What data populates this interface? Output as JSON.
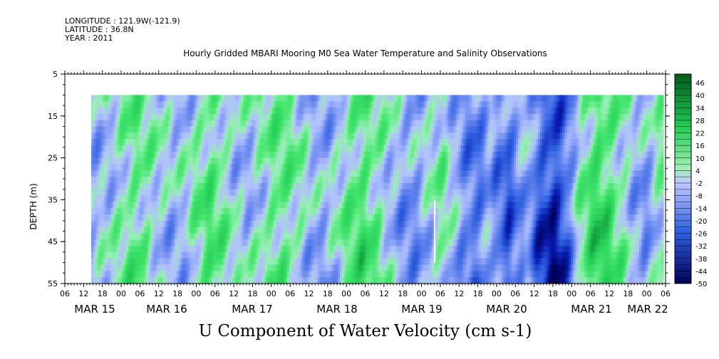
{
  "header": {
    "longitude": "LONGITUDE : 121.9W(-121.9)",
    "latitude": "LATITUDE : 36.8N",
    "year": "YEAR : 2011"
  },
  "chart_data": {
    "type": "heatmap",
    "title": "Hourly Gridded MBARI Mooring M0 Sea Water Temperature and Salinity Observations",
    "xlabel": "U Component of Water Velocity (cm s-1)",
    "ylabel": "DEPTH (m)",
    "ylim": [
      55,
      5
    ],
    "y_ticks": [
      5,
      15,
      25,
      35,
      45,
      55
    ],
    "x_hour_ticks": [
      "06",
      "12",
      "18",
      "00",
      "06",
      "12",
      "18",
      "00",
      "06",
      "12",
      "18",
      "00",
      "06",
      "12",
      "18",
      "00",
      "06",
      "12",
      "18",
      "00",
      "06",
      "12",
      "18",
      "00",
      "06",
      "12",
      "18",
      "00",
      "06",
      "12",
      "18",
      "00",
      "06"
    ],
    "x_date_labels": [
      "MAR 15",
      "MAR 16",
      "MAR 17",
      "MAR 18",
      "MAR 19",
      "MAR 20",
      "MAR 21",
      "MAR 22"
    ],
    "colorbar_labels": [
      "46",
      "40",
      "34",
      "28",
      "22",
      "16",
      "10",
      "4",
      "-2",
      "-8",
      "-14",
      "-20",
      "-26",
      "-32",
      "-38",
      "-44",
      "-50"
    ],
    "colorbar_range": [
      -50,
      52
    ],
    "colors": {
      "strong_positive": "#005a1a",
      "positive": "#44ee77",
      "near_zero": "#b0c0ff",
      "negative": "#2f5fe0",
      "strong_negative": "#00005a"
    },
    "data_start": "MAR 14 14:00",
    "data_end": "MAR 22 08:00",
    "depth_range": [
      10,
      55
    ],
    "column_mean_u": [
      -6,
      -4,
      -2,
      3,
      8,
      10,
      6,
      1,
      -3,
      -5,
      -4,
      2,
      8,
      12,
      9,
      3,
      -2,
      -4,
      -1,
      4,
      9,
      11,
      7,
      2,
      -4,
      -8,
      -6,
      -1,
      6,
      12,
      14,
      10,
      4,
      -3,
      -8,
      -12,
      -9,
      -4,
      2,
      5,
      -6,
      -14,
      -20,
      -16,
      -8,
      -18,
      -24,
      -15,
      -5,
      -22,
      -30,
      -36,
      -28,
      -12,
      4,
      14,
      20,
      16,
      8,
      2,
      -6,
      -10,
      -4,
      6
    ]
  }
}
